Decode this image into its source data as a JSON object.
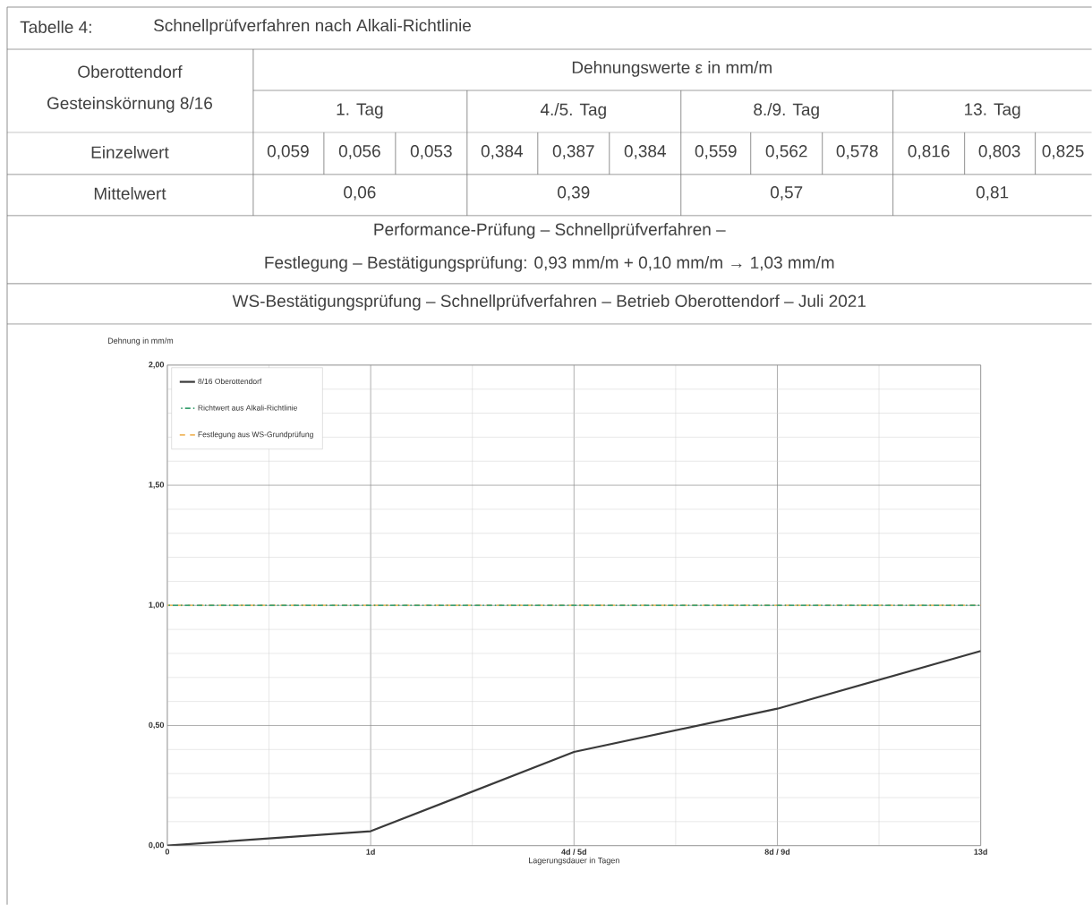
{
  "chart_data": {
    "type": "line",
    "title": "WS-Bestätigungsprüfung – Schnellprüfverfahren – Betrieb Oberottendorf – Juli 2021",
    "xlabel": "Lagerungsdauer in Tagen",
    "ylabel": "Dehnung in mm/m",
    "categories": [
      "0",
      "1d",
      "4d / 5d",
      "8d / 9d",
      "13d"
    ],
    "series": [
      {
        "name": "8/16 Oberottendorf",
        "color": "#3a3a3a",
        "values": [
          0,
          0.06,
          0.39,
          0.57,
          0.81
        ],
        "value_labels": [
          null,
          "0,06",
          "0,39",
          "0,57",
          "0,81"
        ]
      }
    ],
    "ref_lines": [
      {
        "axis": "y",
        "value": 1.0,
        "label": "Richtwert aus Alkali-Richtlinie",
        "color": "#3aa070",
        "line_style": "dotted"
      },
      {
        "axis": "y",
        "value": 1.0,
        "label": "Festlegung aus WS-Grundprüfung",
        "color": "#f0b860",
        "line_style": "dashed"
      }
    ],
    "ylim": [
      0,
      2
    ],
    "yticks": [
      {
        "value": 0,
        "label": "0,00"
      },
      {
        "value": 0.5,
        "label": "0,50"
      },
      {
        "value": 1,
        "label": "1,00"
      },
      {
        "value": 1.5,
        "label": "1,50"
      },
      {
        "value": 2,
        "label": "2,00"
      }
    ],
    "grid": true,
    "legend": "top left",
    "marker": "none",
    "line_style": "solid",
    "annotations": [
      "Tabelle 4:",
      "Schnellprüfverfahren nach Alkali-Richtlinie",
      "Oberottendorf",
      "Gesteinskörnung 8/16",
      "Dehnungswerte ε in mm/m",
      "1. Tag",
      "4./5. Tag",
      "8./9. Tag",
      "13. Tag",
      "Einzelwert",
      "0,059",
      "0,056",
      "0,053",
      "0,384",
      "0,387",
      "0,384",
      "0,559",
      "0,562",
      "0,578",
      "0,816",
      "0,803",
      "0,825",
      "Mittelwert",
      "Performance-Prüfung – Schnellprüfverfahren –",
      "Festlegung – Bestätigungsprüfung: 0,93 mm/m + 0,10 mm/m → 1,03 mm/m"
    ]
  }
}
